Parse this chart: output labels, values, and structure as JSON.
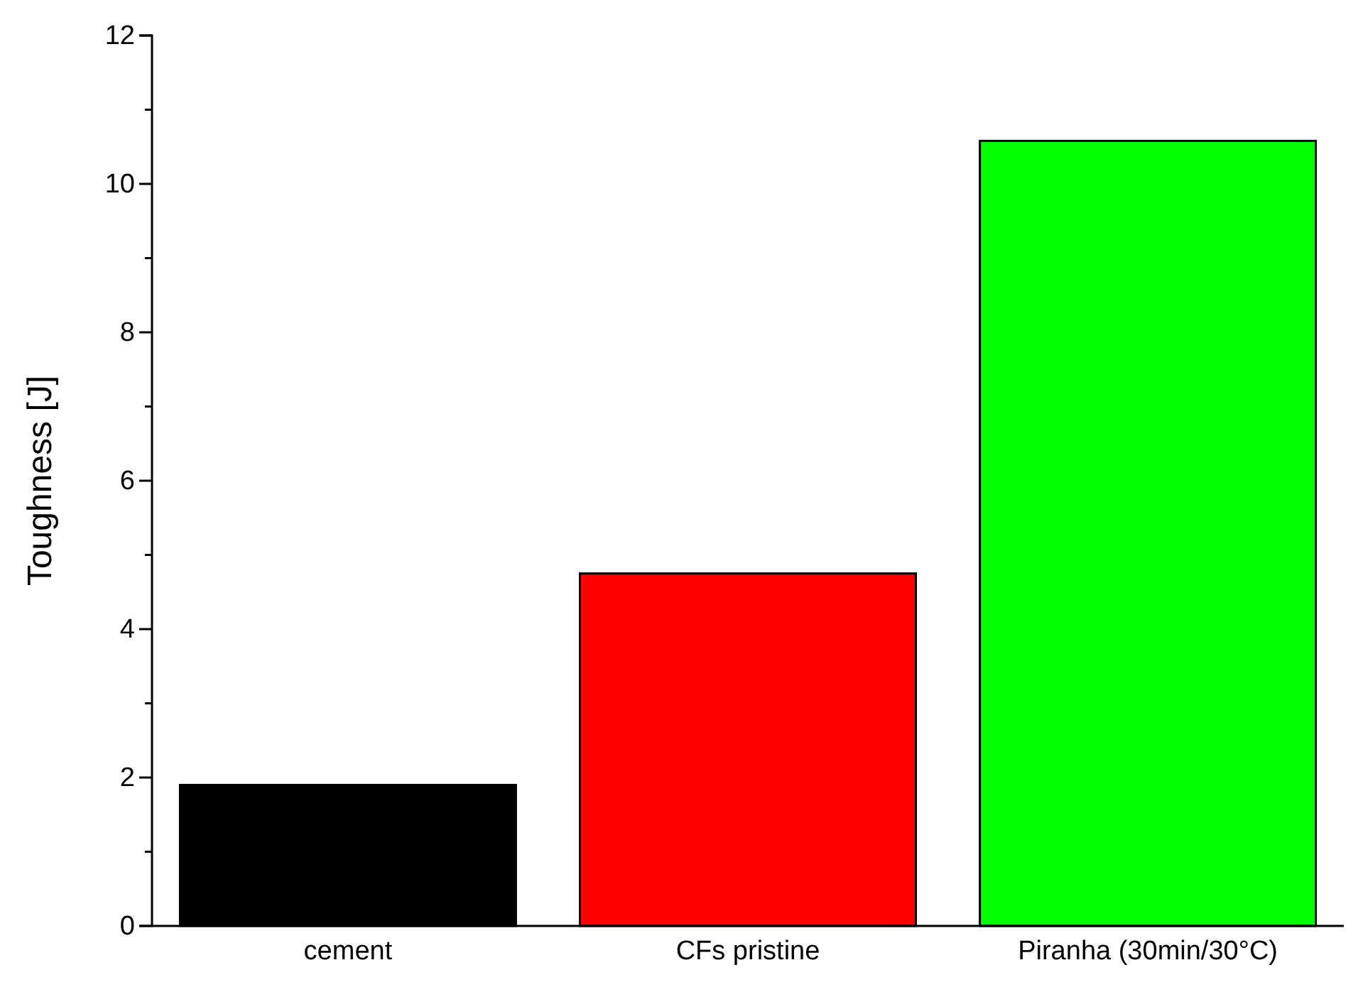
{
  "chart_data": {
    "type": "bar",
    "ylabel": "Toughness [J]",
    "categories": [
      "cement",
      "CFs pristine",
      "Piranha (30min/30°C)"
    ],
    "values": [
      1.9,
      4.75,
      10.58
    ],
    "colors": [
      "#000000",
      "#ff0000",
      "#00ff00"
    ],
    "ylim": [
      0,
      12
    ],
    "yticks": [
      0,
      {
        "value": 1,
        "label": null
      },
      2,
      {
        "value": 3,
        "label": null
      },
      4,
      {
        "value": 5,
        "label": null
      },
      6,
      {
        "value": 7,
        "label": null
      },
      8,
      {
        "value": 9,
        "label": null
      },
      10,
      {
        "value": 11,
        "label": null
      },
      12
    ],
    "grid": false
  }
}
